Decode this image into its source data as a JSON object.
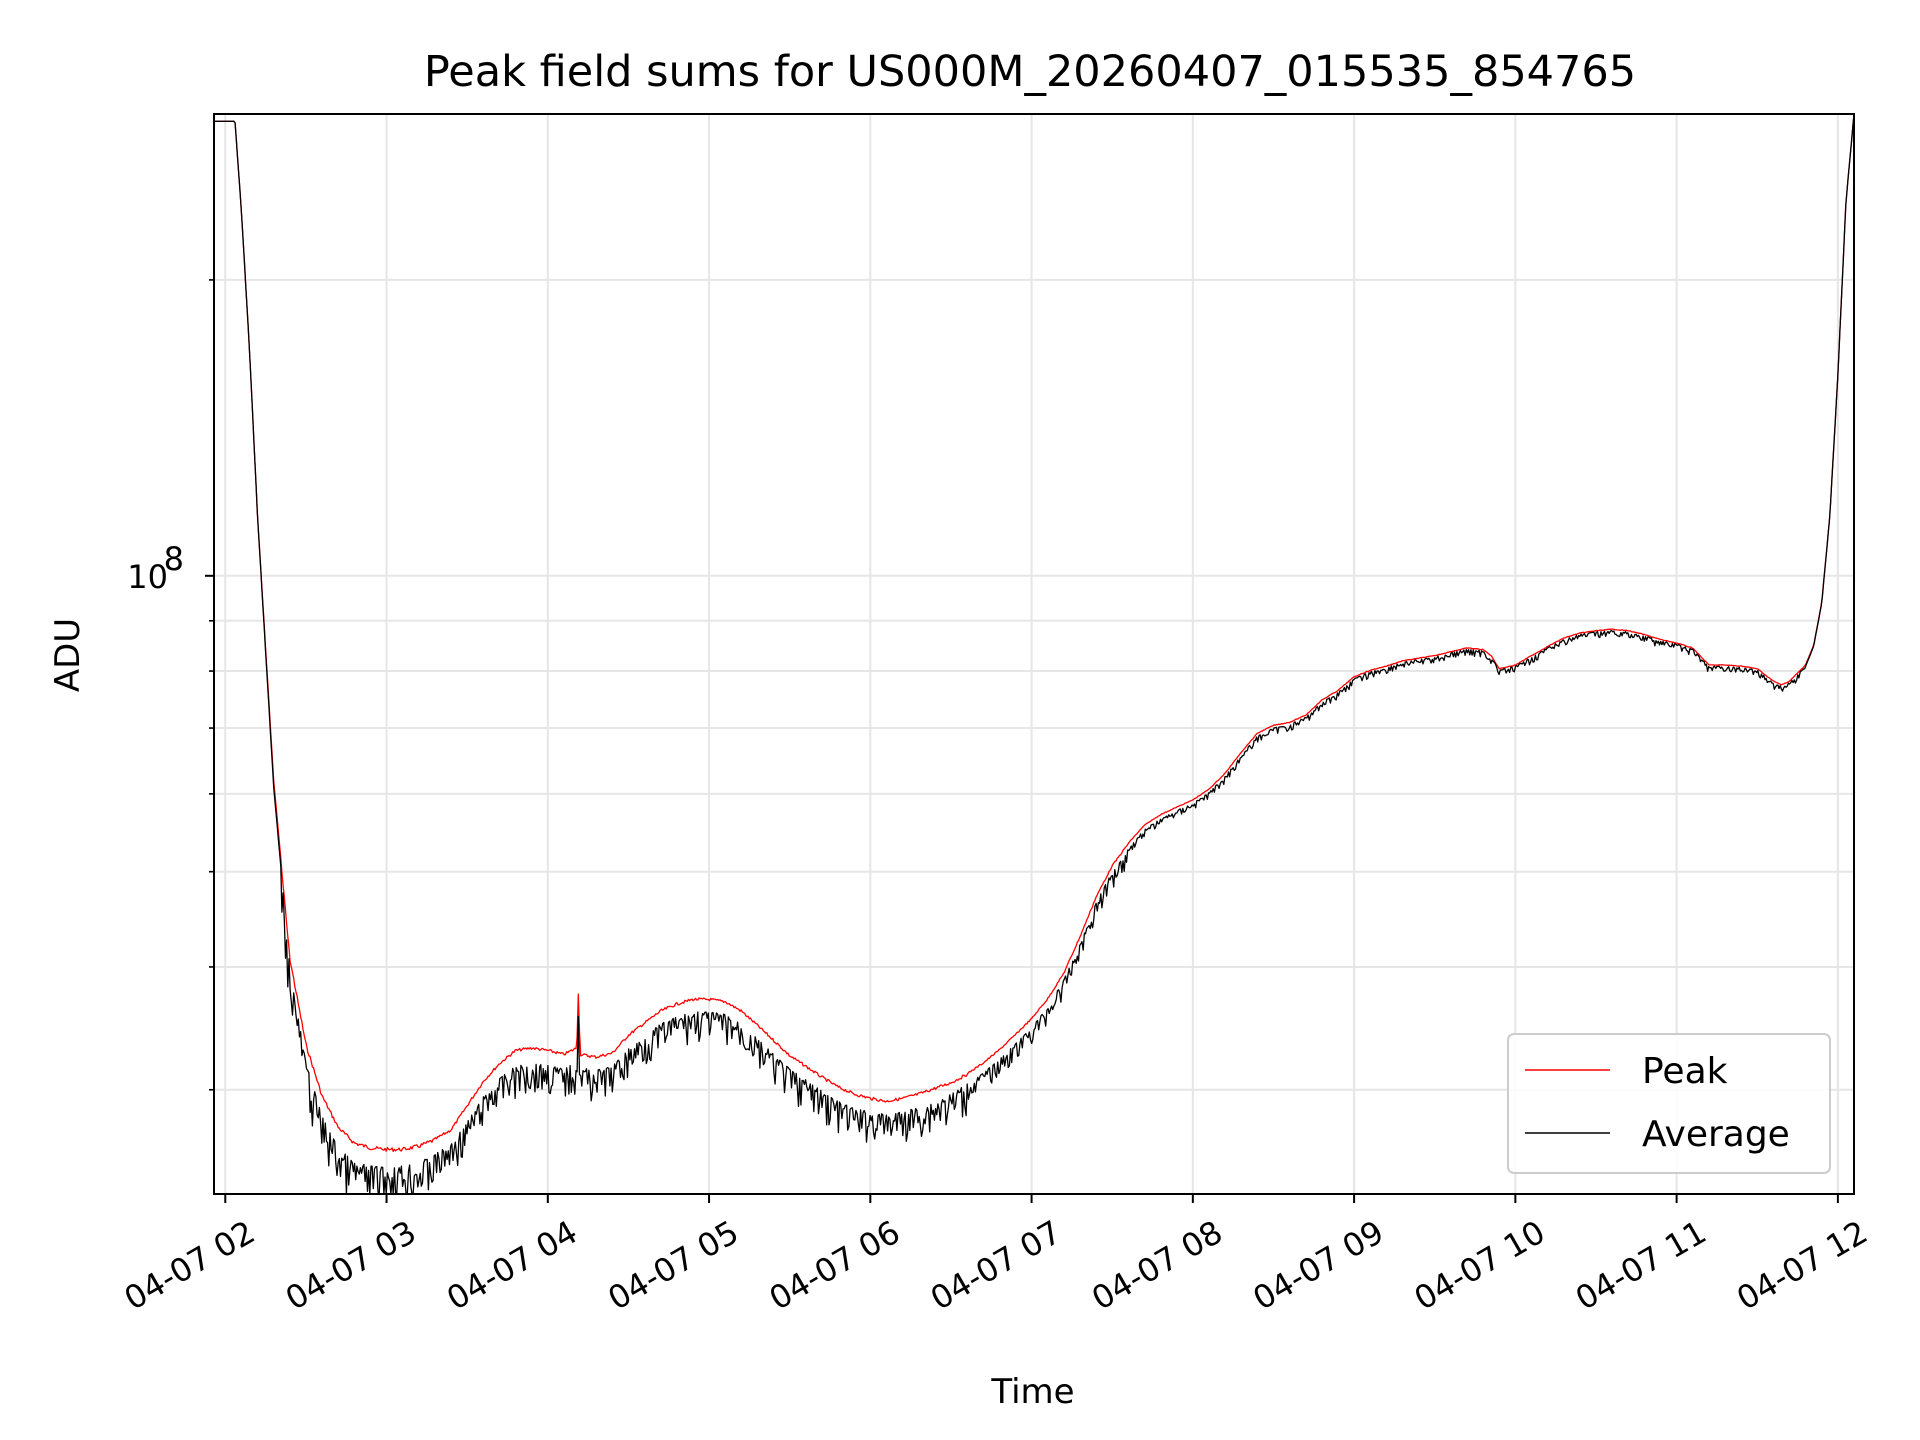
{
  "chart_data": {
    "type": "line",
    "title": "Peak field sums for US000M_20260407_015535_854765",
    "xlabel": "Time",
    "ylabel": "ADU",
    "yscale": "log",
    "ylim": [
      23500000.0,
      295000000.0
    ],
    "xlim": [
      1.93,
      12.1
    ],
    "x_units": "hours on 04-07",
    "x_ticks": [
      2,
      3,
      4,
      5,
      6,
      7,
      8,
      9,
      10,
      11,
      12
    ],
    "x_tick_labels": [
      "04-07 02",
      "04-07 03",
      "04-07 04",
      "04-07 05",
      "04-07 06",
      "04-07 07",
      "04-07 08",
      "04-07 09",
      "04-07 10",
      "04-07 11",
      "04-07 12"
    ],
    "y_major_ticks": [
      100000000.0
    ],
    "y_major_labels": [
      "10",
      "8"
    ],
    "y_minor_ticks": [
      30000000.0,
      40000000.0,
      50000000.0,
      60000000.0,
      70000000.0,
      80000000.0,
      90000000.0,
      200000000.0
    ],
    "grid": true,
    "legend_position": "lower-right",
    "series": [
      {
        "name": "Peak",
        "color": "#ff0000",
        "x": [
          1.93,
          2.06,
          2.1,
          2.15,
          2.2,
          2.3,
          2.4,
          2.5,
          2.6,
          2.7,
          2.8,
          2.9,
          3.0,
          3.1,
          3.2,
          3.3,
          3.4,
          3.5,
          3.6,
          3.7,
          3.8,
          3.9,
          4.0,
          4.1,
          4.18,
          4.19,
          4.2,
          4.3,
          4.4,
          4.5,
          4.6,
          4.7,
          4.8,
          4.9,
          5.0,
          5.1,
          5.2,
          5.3,
          5.4,
          5.5,
          5.6,
          5.7,
          5.8,
          5.9,
          6.0,
          6.1,
          6.2,
          6.3,
          6.4,
          6.5,
          6.6,
          6.7,
          6.8,
          6.9,
          7.0,
          7.1,
          7.2,
          7.3,
          7.4,
          7.5,
          7.6,
          7.7,
          7.8,
          7.9,
          8.0,
          8.1,
          8.2,
          8.3,
          8.4,
          8.5,
          8.6,
          8.7,
          8.8,
          8.9,
          9.0,
          9.1,
          9.2,
          9.3,
          9.4,
          9.5,
          9.6,
          9.7,
          9.8,
          9.85,
          9.9,
          10.0,
          10.1,
          10.2,
          10.3,
          10.4,
          10.5,
          10.6,
          10.7,
          10.8,
          10.9,
          11.0,
          11.1,
          11.2,
          11.3,
          11.4,
          11.5,
          11.6,
          11.65,
          11.7,
          11.8,
          11.85,
          11.9,
          11.95,
          12.0,
          12.05,
          12.1
        ],
        "values": [
          290000000.0,
          290000000.0,
          235000000.0,
          170000000.0,
          115000000.0,
          62000000.0,
          41000000.0,
          33500000.0,
          29700000.0,
          27600000.0,
          26600000.0,
          26300000.0,
          26200000.0,
          26200000.0,
          26400000.0,
          26800000.0,
          27400000.0,
          29000000.0,
          30700000.0,
          32000000.0,
          33000000.0,
          33200000.0,
          33000000.0,
          32700000.0,
          33200000.0,
          38200000.0,
          32700000.0,
          32500000.0,
          32800000.0,
          34200000.0,
          35200000.0,
          36200000.0,
          36800000.0,
          37200000.0,
          37200000.0,
          37000000.0,
          36200000.0,
          35000000.0,
          33800000.0,
          32600000.0,
          31800000.0,
          31000000.0,
          30300000.0,
          29800000.0,
          29500000.0,
          29300000.0,
          29500000.0,
          29800000.0,
          30200000.0,
          30600000.0,
          31200000.0,
          32000000.0,
          33000000.0,
          34200000.0,
          35500000.0,
          37200000.0,
          39500000.0,
          43000000.0,
          47200000.0,
          50800000.0,
          53500000.0,
          55800000.0,
          57200000.0,
          58200000.0,
          59200000.0,
          60700000.0,
          63000000.0,
          66200000.0,
          69200000.0,
          70500000.0,
          71000000.0,
          72200000.0,
          74800000.0,
          76500000.0,
          79000000.0,
          80200000.0,
          81000000.0,
          82000000.0,
          82500000.0,
          83000000.0,
          83800000.0,
          84500000.0,
          84200000.0,
          83000000.0,
          80500000.0,
          81200000.0,
          83000000.0,
          84800000.0,
          86500000.0,
          87500000.0,
          88000000.0,
          88300000.0,
          88000000.0,
          87200000.0,
          86200000.0,
          85500000.0,
          84500000.0,
          81200000.0,
          81200000.0,
          81000000.0,
          80500000.0,
          78200000.0,
          77500000.0,
          78200000.0,
          81200000.0,
          85000000.0,
          94000000.0,
          115000000.0,
          160000000.0,
          240000000.0,
          295000000.0
        ]
      },
      {
        "name": "Average",
        "color": "#000000",
        "x": [
          1.93,
          2.06,
          2.1,
          2.15,
          2.2,
          2.3,
          2.4,
          2.5,
          2.6,
          2.7,
          2.8,
          2.9,
          3.0,
          3.1,
          3.2,
          3.3,
          3.4,
          3.5,
          3.6,
          3.7,
          3.8,
          3.9,
          4.0,
          4.1,
          4.18,
          4.19,
          4.2,
          4.3,
          4.4,
          4.5,
          4.6,
          4.7,
          4.8,
          4.9,
          5.0,
          5.1,
          5.2,
          5.3,
          5.4,
          5.5,
          5.6,
          5.7,
          5.8,
          5.9,
          6.0,
          6.1,
          6.2,
          6.3,
          6.4,
          6.5,
          6.6,
          6.7,
          6.8,
          6.9,
          7.0,
          7.1,
          7.2,
          7.3,
          7.4,
          7.5,
          7.6,
          7.7,
          7.8,
          7.9,
          8.0,
          8.1,
          8.2,
          8.3,
          8.4,
          8.5,
          8.6,
          8.7,
          8.8,
          8.9,
          9.0,
          9.1,
          9.2,
          9.3,
          9.4,
          9.5,
          9.6,
          9.7,
          9.8,
          9.85,
          9.9,
          10.0,
          10.1,
          10.2,
          10.3,
          10.4,
          10.5,
          10.6,
          10.7,
          10.8,
          10.9,
          11.0,
          11.1,
          11.2,
          11.3,
          11.4,
          11.5,
          11.6,
          11.65,
          11.7,
          11.8,
          11.85,
          11.9,
          11.95,
          12.0,
          12.05,
          12.1
        ],
        "values": [
          290000000.0,
          290000000.0,
          235000000.0,
          170000000.0,
          115000000.0,
          61000000.0,
          40000000.0,
          32000000.0,
          28200000.0,
          26200000.0,
          25300000.0,
          25100000.0,
          25000000.0,
          25100000.0,
          25300000.0,
          25800000.0,
          26400000.0,
          27800000.0,
          29500000.0,
          30800000.0,
          31700000.0,
          31900000.0,
          31800000.0,
          31500000.0,
          32000000.0,
          36000000.0,
          31600000.0,
          31400000.0,
          31700000.0,
          33000000.0,
          34000000.0,
          35000000.0,
          35600000.0,
          36000000.0,
          36000000.0,
          35800000.0,
          35000000.0,
          33800000.0,
          32600000.0,
          31500000.0,
          30700000.0,
          29900000.0,
          29200000.0,
          28700000.0,
          28500000.0,
          28300000.0,
          28500000.0,
          28800000.0,
          29200000.0,
          29700000.0,
          30400000.0,
          31200000.0,
          32200000.0,
          33400000.0,
          34700000.0,
          36400000.0,
          38800000.0,
          42200000.0,
          46500000.0,
          50000000.0,
          52800000.0,
          55200000.0,
          56600000.0,
          57700000.0,
          58700000.0,
          60200000.0,
          62500000.0,
          65700000.0,
          68700000.0,
          70000000.0,
          70600000.0,
          71800000.0,
          74400000.0,
          76100000.0,
          78600000.0,
          79900000.0,
          80700000.0,
          81700000.0,
          82200000.0,
          82700000.0,
          83500000.0,
          84200000.0,
          83900000.0,
          82700000.0,
          80200000.0,
          80900000.0,
          82700000.0,
          84500000.0,
          86200000.0,
          87200000.0,
          87700000.0,
          88000000.0,
          87700000.0,
          86900000.0,
          85900000.0,
          85200000.0,
          84200000.0,
          80900000.0,
          80900000.0,
          80700000.0,
          80200000.0,
          77900000.0,
          77200000.0,
          77900000.0,
          80900000.0,
          84800000.0,
          93800000.0,
          115000000.0,
          160000000.0,
          240000000.0,
          295000000.0
        ]
      }
    ]
  }
}
